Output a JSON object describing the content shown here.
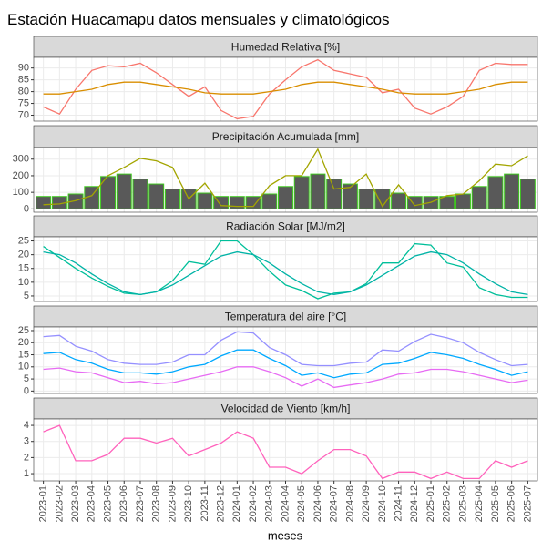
{
  "title": "Estación Huacamapu datos mensuales y climatológicos",
  "xlabel": "meses",
  "categories": [
    "2023-01",
    "2023-02",
    "2023-03",
    "2023-04",
    "2023-05",
    "2023-06",
    "2023-07",
    "2023-08",
    "2023-09",
    "2023-10",
    "2023-11",
    "2023-12",
    "2024-01",
    "2024-02",
    "2024-03",
    "2024-04",
    "2024-05",
    "2024-06",
    "2024-07",
    "2024-08",
    "2024-09",
    "2024-10",
    "2024-11",
    "2024-12",
    "2025-01",
    "2025-02",
    "2025-03",
    "2025-04",
    "2025-05",
    "2025-06",
    "2025-07"
  ],
  "chart_data": [
    {
      "type": "line",
      "title": "Humedad Relativa [%]",
      "ylim": [
        67.5,
        94.5
      ],
      "yticks": [
        70,
        75,
        80,
        85,
        90
      ],
      "grid": true,
      "series": [
        {
          "color": "#f8766d",
          "values": [
            73.5,
            70.5,
            81,
            89,
            91,
            90.5,
            92,
            88,
            83,
            78,
            82,
            72,
            68.5,
            69.5,
            79,
            85,
            90.5,
            93.5,
            89,
            87.5,
            86,
            79.5,
            81,
            73,
            70.5,
            73.5,
            78,
            89,
            92,
            91.5,
            91.5
          ]
        },
        {
          "color": "#d98e00",
          "values": [
            79,
            79,
            80,
            81,
            83,
            84,
            84,
            83,
            82,
            81,
            79.5,
            79,
            79,
            79,
            80,
            81,
            83,
            84,
            84,
            83,
            82,
            81,
            79.5,
            79,
            79,
            79,
            80,
            81,
            83,
            84,
            84
          ]
        }
      ]
    },
    {
      "type": "bar",
      "title": "Precipitación Acumulada [mm]",
      "ylim": [
        -20,
        370
      ],
      "yticks": [
        0,
        100,
        200,
        300
      ],
      "grid": true,
      "series": [
        {
          "type": "bar",
          "color": "#595959",
          "border": "#3ec81e",
          "values": [
            75,
            75,
            90,
            135,
            195,
            210,
            180,
            150,
            120,
            120,
            95,
            75,
            75,
            75,
            90,
            135,
            195,
            210,
            180,
            150,
            120,
            120,
            95,
            75,
            75,
            75,
            90,
            135,
            195,
            210,
            180
          ]
        },
        {
          "type": "line",
          "color": "#a3a500",
          "values": [
            25,
            30,
            50,
            80,
            200,
            250,
            305,
            290,
            250,
            60,
            155,
            20,
            15,
            15,
            140,
            200,
            200,
            360,
            120,
            130,
            210,
            15,
            145,
            20,
            40,
            80,
            90,
            170,
            270,
            260,
            320
          ]
        }
      ]
    },
    {
      "type": "line",
      "title": "Radiación Solar [MJ/m2]",
      "ylim": [
        3,
        26.5
      ],
      "yticks": [
        5,
        10,
        15,
        20,
        25
      ],
      "grid": true,
      "series": [
        {
          "color": "#00bf9a",
          "values": [
            23,
            19,
            15,
            11.5,
            8.5,
            6,
            5.5,
            6.5,
            10.5,
            17.5,
            16.5,
            25,
            25,
            20,
            14,
            9,
            7,
            4,
            6,
            6.5,
            9.5,
            17,
            17,
            24,
            23.5,
            17,
            15.5,
            8,
            5.5,
            4.5,
            4.5
          ]
        },
        {
          "color": "#00b3a6",
          "values": [
            21,
            20,
            17,
            13,
            9.5,
            6.5,
            5.5,
            6.5,
            9,
            12.5,
            16,
            19.5,
            21,
            20,
            17,
            13,
            9.5,
            6.5,
            5.5,
            6.5,
            9,
            12.5,
            16,
            19.5,
            21,
            20,
            17,
            13,
            9.5,
            6.5,
            5.5
          ]
        }
      ]
    },
    {
      "type": "line",
      "title": "Temperatura del aire [°C]",
      "ylim": [
        -1,
        26.5
      ],
      "yticks": [
        0,
        5,
        10,
        15,
        20,
        25
      ],
      "grid": true,
      "series": [
        {
          "color": "#9590ff",
          "values": [
            22.5,
            23,
            18.5,
            16.5,
            13,
            11.5,
            11,
            11,
            12,
            15,
            15,
            21,
            24.5,
            24,
            18,
            15,
            11,
            10.5,
            10.5,
            11.5,
            12,
            17,
            16.5,
            20.5,
            23.5,
            22,
            20,
            16,
            13,
            10.5,
            11
          ]
        },
        {
          "color": "#00a9ff",
          "values": [
            15.5,
            16,
            13,
            11.5,
            9,
            7.5,
            7.5,
            7,
            8,
            10,
            11,
            14.5,
            17,
            17,
            13.5,
            10.5,
            6.5,
            7.5,
            5.5,
            7,
            7.5,
            11,
            11.5,
            13.5,
            16,
            15,
            13.5,
            11,
            9,
            6.5,
            8
          ]
        },
        {
          "color": "#e76bf3",
          "values": [
            9,
            9.5,
            8,
            7.5,
            5.5,
            3.5,
            4,
            3,
            3.5,
            5,
            6.5,
            8,
            10,
            10,
            8,
            5.5,
            2,
            5,
            1.5,
            2.5,
            3.5,
            5,
            7,
            7.5,
            9,
            9,
            8,
            6.5,
            5,
            3.5,
            4.5
          ]
        }
      ]
    },
    {
      "type": "line",
      "title": "Velocidad de Viento [km/h]",
      "ylim": [
        0.55,
        4.4
      ],
      "yticks": [
        1,
        2,
        3,
        4
      ],
      "grid": true,
      "series": [
        {
          "color": "#ff62bc",
          "values": [
            3.6,
            4.0,
            1.8,
            1.8,
            2.2,
            3.2,
            3.2,
            2.9,
            3.2,
            2.1,
            2.5,
            2.9,
            3.6,
            3.2,
            1.4,
            1.4,
            1.0,
            1.8,
            2.5,
            2.5,
            2.1,
            0.7,
            1.1,
            1.1,
            0.7,
            1.1,
            0.7,
            0.7,
            1.8,
            1.4,
            1.8
          ]
        }
      ]
    }
  ]
}
